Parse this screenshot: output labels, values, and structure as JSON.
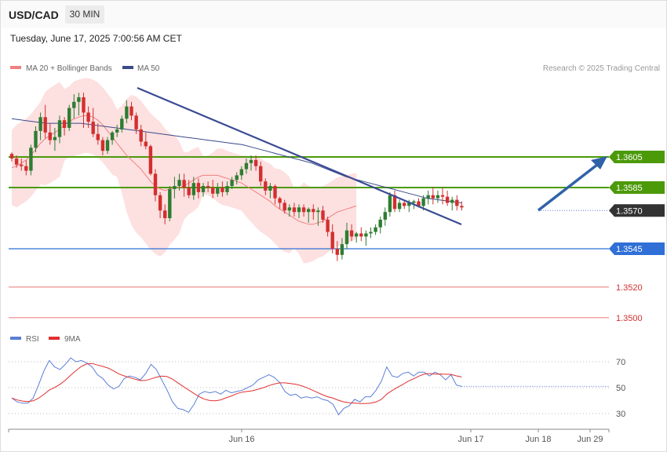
{
  "header": {
    "symbol": "USD/CAD",
    "timeframe": "30 MIN",
    "datetime": "Tuesday, June 17, 2025 7:00:56 AM CET"
  },
  "legend": {
    "bb_label": "MA 20 + Bollinger Bands",
    "ma50_label": "MA 50",
    "credit": "Research © 2025 Trading Central"
  },
  "rsi_legend": {
    "rsi_label": "RSI",
    "ma_label": "9MA"
  },
  "colors": {
    "bull": "#2e7d32",
    "bear": "#d32f2f",
    "band": "#fde0e0",
    "ma20": "#f08080",
    "ma50": "#3a4a8a",
    "resistance": "#4c9a0a",
    "support": "#2f6fd6",
    "target_red": "#f4a3a3",
    "current": "#333333",
    "rsi": "#5b7fd6",
    "rsi_ma": "#e03030"
  },
  "chart_data": {
    "type": "candlestick",
    "ylim": [
      1.3485,
      1.366
    ],
    "x_labels": [
      "Jun 16",
      "Jun 17",
      "Jun 18",
      "Jun 29"
    ],
    "levels": [
      {
        "value": 1.3605,
        "label": "1.3605",
        "kind": "resistance"
      },
      {
        "value": 1.3585,
        "label": "1.3585",
        "kind": "resistance"
      },
      {
        "value": 1.357,
        "label": "1.3570",
        "kind": "current"
      },
      {
        "value": 1.3545,
        "label": "1.3545",
        "kind": "support"
      },
      {
        "value": 1.352,
        "label": "1.3520",
        "kind": "target"
      },
      {
        "value": 1.35,
        "label": "1.3500",
        "kind": "target"
      }
    ],
    "candles": [
      [
        1.3607,
        1.3608,
        1.3602,
        1.3604
      ],
      [
        1.3604,
        1.3606,
        1.3598,
        1.36
      ],
      [
        1.36,
        1.3604,
        1.3596,
        1.3599
      ],
      [
        1.3599,
        1.3603,
        1.3593,
        1.3596
      ],
      [
        1.3596,
        1.3613,
        1.3593,
        1.3611
      ],
      [
        1.3611,
        1.3625,
        1.3608,
        1.3622
      ],
      [
        1.3622,
        1.3634,
        1.3616,
        1.3631
      ],
      [
        1.3631,
        1.3639,
        1.3617,
        1.3621
      ],
      [
        1.3621,
        1.3627,
        1.3613,
        1.3616
      ],
      [
        1.3616,
        1.3624,
        1.3609,
        1.3618
      ],
      [
        1.3618,
        1.3632,
        1.3614,
        1.3629
      ],
      [
        1.3629,
        1.3631,
        1.3619,
        1.3624
      ],
      [
        1.3624,
        1.3639,
        1.3622,
        1.3637
      ],
      [
        1.3637,
        1.3646,
        1.363,
        1.3641
      ],
      [
        1.3641,
        1.3647,
        1.3632,
        1.3644
      ],
      [
        1.3644,
        1.3647,
        1.3624,
        1.3634
      ],
      [
        1.3634,
        1.3638,
        1.3624,
        1.3628
      ],
      [
        1.3628,
        1.3637,
        1.3618,
        1.362
      ],
      [
        1.362,
        1.3627,
        1.3613,
        1.3616
      ],
      [
        1.3616,
        1.3618,
        1.3606,
        1.3609
      ],
      [
        1.3609,
        1.3618,
        1.3607,
        1.3616
      ],
      [
        1.3616,
        1.3622,
        1.3613,
        1.3621
      ],
      [
        1.3621,
        1.3626,
        1.3618,
        1.3623
      ],
      [
        1.3623,
        1.3632,
        1.3621,
        1.363
      ],
      [
        1.363,
        1.3642,
        1.3627,
        1.3638
      ],
      [
        1.3638,
        1.3641,
        1.3629,
        1.3632
      ],
      [
        1.3632,
        1.3634,
        1.362,
        1.3623
      ],
      [
        1.3623,
        1.3626,
        1.3612,
        1.3615
      ],
      [
        1.3615,
        1.3621,
        1.361,
        1.3612
      ],
      [
        1.3612,
        1.3613,
        1.3593,
        1.3594
      ],
      [
        1.3594,
        1.3597,
        1.3576,
        1.358
      ],
      [
        1.358,
        1.3582,
        1.3565,
        1.357
      ],
      [
        1.357,
        1.3574,
        1.3561,
        1.3565
      ],
      [
        1.3565,
        1.3586,
        1.3563,
        1.3584
      ],
      [
        1.3584,
        1.3592,
        1.3578,
        1.3586
      ],
      [
        1.3586,
        1.3594,
        1.3583,
        1.359
      ],
      [
        1.359,
        1.3594,
        1.3579,
        1.3585
      ],
      [
        1.3585,
        1.359,
        1.3578,
        1.358
      ],
      [
        1.358,
        1.3592,
        1.3577,
        1.3588
      ],
      [
        1.3588,
        1.3591,
        1.3578,
        1.3582
      ],
      [
        1.3582,
        1.3588,
        1.3579,
        1.3586
      ],
      [
        1.3586,
        1.3589,
        1.3582,
        1.3585
      ],
      [
        1.3585,
        1.359,
        1.3578,
        1.3581
      ],
      [
        1.3581,
        1.3588,
        1.3579,
        1.3585
      ],
      [
        1.3585,
        1.3589,
        1.3579,
        1.3582
      ],
      [
        1.3582,
        1.3589,
        1.358,
        1.3586
      ],
      [
        1.3586,
        1.3592,
        1.3584,
        1.359
      ],
      [
        1.359,
        1.3595,
        1.3587,
        1.3593
      ],
      [
        1.3593,
        1.3599,
        1.359,
        1.3597
      ],
      [
        1.3597,
        1.3604,
        1.3594,
        1.3601
      ],
      [
        1.3601,
        1.3606,
        1.3596,
        1.3603
      ],
      [
        1.3603,
        1.3606,
        1.3596,
        1.3599
      ],
      [
        1.3599,
        1.3602,
        1.3586,
        1.3589
      ],
      [
        1.3589,
        1.3591,
        1.358,
        1.3583
      ],
      [
        1.3583,
        1.3588,
        1.3578,
        1.3586
      ],
      [
        1.3586,
        1.3587,
        1.3574,
        1.3578
      ],
      [
        1.3578,
        1.3579,
        1.3571,
        1.3575
      ],
      [
        1.3575,
        1.3577,
        1.3568,
        1.357
      ],
      [
        1.357,
        1.3574,
        1.3566,
        1.3572
      ],
      [
        1.3572,
        1.3575,
        1.3566,
        1.3569
      ],
      [
        1.3569,
        1.3574,
        1.3565,
        1.3572
      ],
      [
        1.3572,
        1.3574,
        1.3566,
        1.3569
      ],
      [
        1.3569,
        1.3572,
        1.3562,
        1.3571
      ],
      [
        1.3571,
        1.3574,
        1.3564,
        1.3569
      ],
      [
        1.3569,
        1.3572,
        1.356,
        1.357
      ],
      [
        1.357,
        1.3573,
        1.3562,
        1.3564
      ],
      [
        1.3564,
        1.3566,
        1.3553,
        1.3556
      ],
      [
        1.3556,
        1.3561,
        1.3542,
        1.3545
      ],
      [
        1.3545,
        1.355,
        1.3537,
        1.3541
      ],
      [
        1.3541,
        1.3552,
        1.3538,
        1.3548
      ],
      [
        1.3548,
        1.3562,
        1.3545,
        1.3557
      ],
      [
        1.3557,
        1.3561,
        1.355,
        1.3553
      ],
      [
        1.3553,
        1.3556,
        1.3549,
        1.3555
      ],
      [
        1.3555,
        1.3559,
        1.355,
        1.3553
      ],
      [
        1.3553,
        1.3557,
        1.3547,
        1.3555
      ],
      [
        1.3555,
        1.3559,
        1.3552,
        1.3556
      ],
      [
        1.3556,
        1.3561,
        1.3554,
        1.3559
      ],
      [
        1.3559,
        1.3566,
        1.3555,
        1.3564
      ],
      [
        1.3564,
        1.3572,
        1.356,
        1.3569
      ],
      [
        1.3569,
        1.3582,
        1.3566,
        1.358
      ],
      [
        1.358,
        1.3583,
        1.3569,
        1.3571
      ],
      [
        1.3571,
        1.3577,
        1.3569,
        1.3575
      ],
      [
        1.3575,
        1.3576,
        1.3571,
        1.3573
      ],
      [
        1.3573,
        1.3577,
        1.3569,
        1.3575
      ],
      [
        1.3575,
        1.3577,
        1.3571,
        1.3576
      ],
      [
        1.3576,
        1.3578,
        1.3572,
        1.3573
      ],
      [
        1.3573,
        1.358,
        1.357,
        1.3578
      ],
      [
        1.3578,
        1.3583,
        1.3574,
        1.358
      ],
      [
        1.358,
        1.3585,
        1.3574,
        1.3578
      ],
      [
        1.3578,
        1.3583,
        1.3575,
        1.358
      ],
      [
        1.358,
        1.3585,
        1.3574,
        1.3579
      ],
      [
        1.3579,
        1.3583,
        1.3573,
        1.3575
      ],
      [
        1.3575,
        1.3579,
        1.357,
        1.3577
      ],
      [
        1.3577,
        1.358,
        1.357,
        1.3573
      ],
      [
        1.3573,
        1.3576,
        1.357,
        1.3572
      ]
    ],
    "ma20": [
      1.3598,
      1.3599,
      1.3601,
      1.3603,
      1.3606,
      1.361,
      1.3614,
      1.3617,
      1.3619,
      1.3621,
      1.3623,
      1.3626,
      1.3628,
      1.363,
      1.3631,
      1.3632,
      1.3632,
      1.3631,
      1.3629,
      1.3626,
      1.3622,
      1.3618,
      1.3614,
      1.361,
      1.3606,
      1.3603,
      1.36,
      1.3597,
      1.3593,
      1.3589,
      1.3586,
      1.3584,
      1.3583,
      1.3584,
      1.3585,
      1.3585,
      1.3586,
      1.3588,
      1.359,
      1.3592,
      1.3593,
      1.3593,
      1.3593,
      1.3593,
      1.3592,
      1.3591,
      1.359,
      1.3589,
      1.3588,
      1.3586,
      1.3584,
      1.3582,
      1.358,
      1.3578,
      1.3576,
      1.3573,
      1.3571,
      1.3569,
      1.3567,
      1.3565,
      1.3563,
      1.3562,
      1.3561,
      1.3561,
      1.3562,
      1.3563,
      1.3565,
      1.3567,
      1.3569,
      1.357,
      1.3571,
      1.3572,
      1.3573
    ],
    "ma50": [
      1.363,
      1.3629,
      1.3628,
      1.3627,
      1.3627,
      1.3627,
      1.3627,
      1.3626,
      1.3625,
      1.3624,
      1.3623,
      1.3622,
      1.3621,
      1.362,
      1.3619,
      1.3618,
      1.3617,
      1.3616,
      1.3615,
      1.3614,
      1.3613,
      1.3611,
      1.3609,
      1.3607,
      1.3605,
      1.3603,
      1.3601,
      1.3598,
      1.3595,
      1.3592,
      1.359,
      1.3588,
      1.3586,
      1.3584,
      1.3582,
      1.358,
      1.3578,
      1.3577,
      1.3576,
      1.3575
    ],
    "rsi": [
      42,
      39,
      38,
      38,
      42,
      52,
      63,
      71,
      66,
      64,
      68,
      73,
      70,
      71,
      69,
      66,
      60,
      57,
      52,
      49,
      51,
      57,
      59,
      58,
      56,
      61,
      68,
      64,
      56,
      48,
      39,
      34,
      33,
      31,
      37,
      45,
      47,
      46,
      47,
      45,
      48,
      46,
      47,
      48,
      50,
      52,
      56,
      58,
      60,
      58,
      54,
      47,
      44,
      45,
      42,
      43,
      42,
      43,
      41,
      40,
      37,
      29,
      34,
      36,
      41,
      39,
      43,
      43,
      48,
      55,
      66,
      59,
      58,
      61,
      62,
      59,
      62,
      62,
      59,
      62,
      60,
      56,
      60,
      52,
      51
    ]
  }
}
